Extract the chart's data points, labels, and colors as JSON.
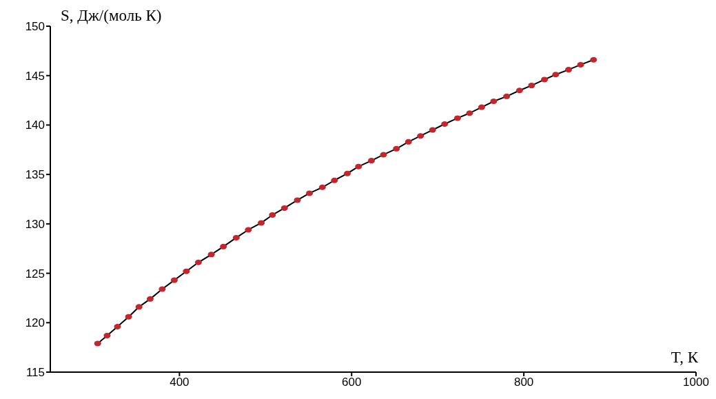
{
  "chart_data": {
    "type": "scatter",
    "xlabel": "T, К",
    "ylabel": "S, Дж/(моль К)",
    "xlim": [
      250,
      1000
    ],
    "xticks": [
      400,
      600,
      800,
      1000
    ],
    "ylim": [
      115,
      150
    ],
    "yticks": [
      115,
      120,
      125,
      130,
      135,
      140,
      145,
      150
    ],
    "grid": false,
    "marker": "circle",
    "series": [
      {
        "type": "line",
        "color": "#000000",
        "marker": "none",
        "x": [
          305,
          316,
          328,
          341,
          353,
          366,
          380,
          394,
          408,
          422,
          437,
          451,
          466,
          480,
          495,
          508,
          522,
          537,
          551,
          566,
          580,
          595,
          608,
          623,
          637,
          652,
          666,
          680,
          694,
          708,
          723,
          737,
          751,
          765,
          780,
          795,
          809,
          824,
          837,
          852,
          866,
          881
        ],
        "values": [
          117.9,
          118.7,
          119.6,
          120.6,
          121.6,
          122.4,
          123.4,
          124.3,
          125.2,
          126.1,
          126.9,
          127.7,
          128.6,
          129.4,
          130.1,
          130.9,
          131.6,
          132.4,
          133.1,
          133.7,
          134.4,
          135.1,
          135.8,
          136.4,
          137.0,
          137.6,
          138.3,
          138.9,
          139.5,
          140.1,
          140.7,
          141.2,
          141.8,
          142.4,
          142.9,
          143.5,
          144.0,
          144.6,
          145.1,
          145.6,
          146.1,
          146.6
        ]
      },
      {
        "color": "#c1272d",
        "x": [
          305,
          316,
          328,
          341,
          353,
          366,
          380,
          394,
          408,
          422,
          437,
          451,
          466,
          480,
          495,
          508,
          522,
          537,
          551,
          566,
          580,
          595,
          608,
          623,
          637,
          652,
          666,
          680,
          694,
          708,
          723,
          737,
          751,
          765,
          780,
          795,
          809,
          824,
          837,
          852,
          866,
          881
        ],
        "values": [
          117.9,
          118.7,
          119.6,
          120.6,
          121.6,
          122.4,
          123.4,
          124.3,
          125.2,
          126.1,
          126.9,
          127.7,
          128.6,
          129.4,
          130.1,
          130.9,
          131.6,
          132.4,
          133.1,
          133.7,
          134.4,
          135.1,
          135.8,
          136.4,
          137.0,
          137.6,
          138.3,
          138.9,
          139.5,
          140.1,
          140.7,
          141.2,
          141.8,
          142.4,
          142.9,
          143.5,
          144.0,
          144.6,
          145.1,
          145.6,
          146.1,
          146.6
        ]
      }
    ]
  }
}
